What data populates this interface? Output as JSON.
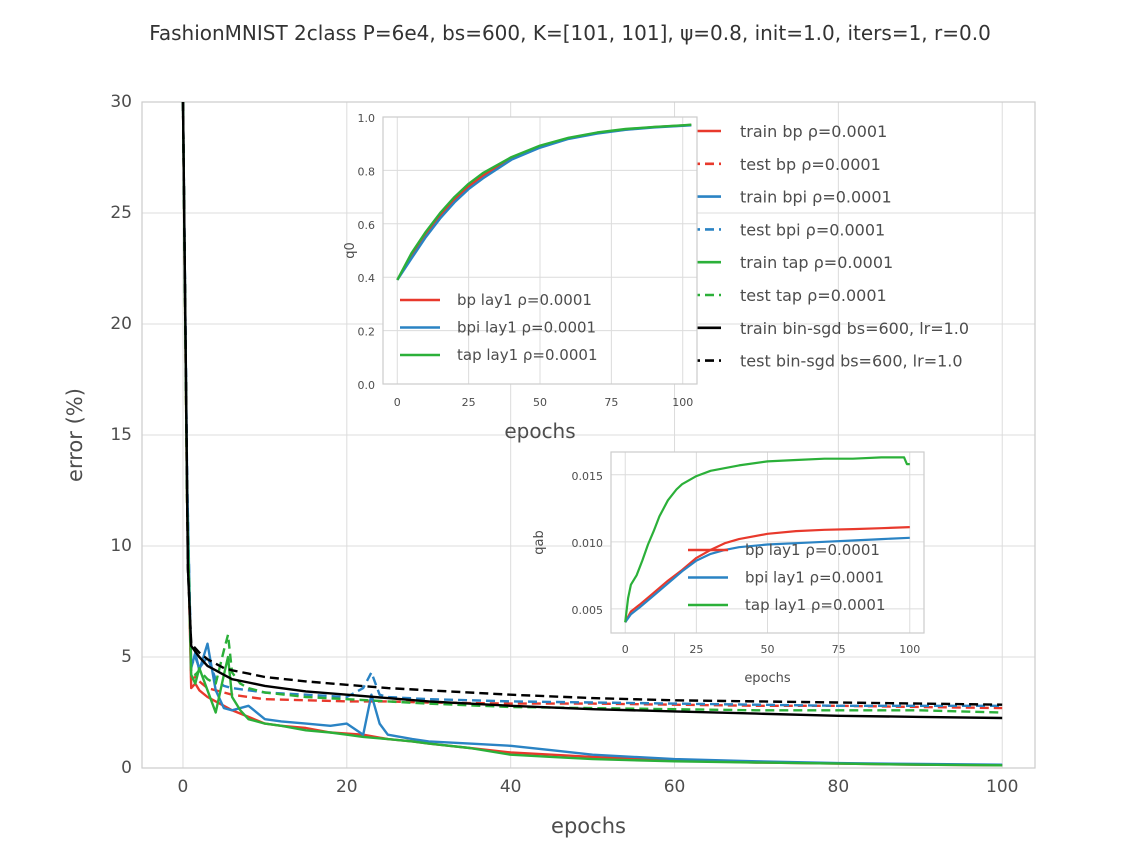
{
  "figure_title": "FashionMNIST 2class P=6e4, bs=600, K=[101, 101], ψ=0.8, init=1.0, iters=1, r=0.0",
  "colors": {
    "bp": "#e8392c",
    "bpi": "#2a83c4",
    "tap": "#2bb039",
    "bin": "#000000",
    "grid": "#dcdcdc",
    "frame": "#cccccc"
  },
  "chart_data": [
    {
      "id": "main",
      "type": "line",
      "title": "",
      "xlabel": "epochs",
      "ylabel": "error (%)",
      "xlim": [
        -5,
        104
      ],
      "ylim": [
        0,
        30
      ],
      "xticks": [
        0,
        20,
        40,
        60,
        80,
        100
      ],
      "yticks": [
        0,
        5,
        10,
        15,
        20,
        25,
        30
      ],
      "grid": true,
      "legend": {
        "placement": "top-right"
      },
      "series": [
        {
          "name": "train bp ρ=0.0001",
          "color_key": "bp",
          "dash": false,
          "x": [
            0,
            0.5,
            1,
            1.5,
            2,
            3,
            4,
            5,
            6,
            8,
            10,
            12,
            15,
            18,
            20,
            22,
            25,
            28,
            30,
            35,
            40,
            45,
            50,
            60,
            70,
            80,
            90,
            100
          ],
          "y": [
            30,
            12,
            3.6,
            3.8,
            3.5,
            3.2,
            3.0,
            2.8,
            2.6,
            2.3,
            2.0,
            1.9,
            1.8,
            1.6,
            1.55,
            1.5,
            1.3,
            1.2,
            1.1,
            0.9,
            0.7,
            0.6,
            0.5,
            0.35,
            0.25,
            0.2,
            0.15,
            0.12
          ]
        },
        {
          "name": "test bp ρ=0.0001",
          "color_key": "bp",
          "dash": true,
          "x": [
            0,
            0.5,
            1,
            1.5,
            2,
            3,
            4,
            5,
            6,
            8,
            10,
            15,
            20,
            25,
            30,
            40,
            50,
            60,
            70,
            80,
            90,
            100
          ],
          "y": [
            30,
            12,
            4.0,
            4.1,
            3.9,
            3.6,
            3.5,
            3.4,
            3.3,
            3.2,
            3.1,
            3.05,
            3.0,
            3.0,
            2.95,
            2.9,
            2.9,
            2.85,
            2.8,
            2.8,
            2.75,
            2.7
          ]
        },
        {
          "name": "train bpi ρ=0.0001",
          "color_key": "bpi",
          "dash": false,
          "x": [
            0,
            0.5,
            1,
            1.5,
            2,
            3,
            4,
            5,
            6,
            8,
            10,
            12,
            15,
            18,
            20,
            22,
            23,
            24,
            25,
            28,
            30,
            35,
            40,
            45,
            50,
            60,
            70,
            80,
            90,
            100
          ],
          "y": [
            30,
            13,
            4.5,
            5.2,
            4.4,
            5.6,
            3.5,
            2.7,
            2.6,
            2.8,
            2.2,
            2.1,
            2.0,
            1.9,
            2.0,
            1.5,
            3.3,
            2.0,
            1.5,
            1.3,
            1.2,
            1.1,
            1.0,
            0.8,
            0.6,
            0.4,
            0.3,
            0.22,
            0.18,
            0.15
          ]
        },
        {
          "name": "test bpi ρ=0.0001",
          "color_key": "bpi",
          "dash": true,
          "x": [
            0,
            0.5,
            1,
            1.5,
            2,
            3,
            4,
            5,
            6,
            8,
            10,
            15,
            20,
            22,
            23,
            24,
            25,
            30,
            40,
            50,
            60,
            70,
            80,
            90,
            100
          ],
          "y": [
            30,
            13,
            4.6,
            5.0,
            4.5,
            5.0,
            4.0,
            3.7,
            3.6,
            3.5,
            3.4,
            3.3,
            3.2,
            3.6,
            4.3,
            3.3,
            3.2,
            3.1,
            3.0,
            2.95,
            2.9,
            2.85,
            2.8,
            2.8,
            2.8
          ]
        },
        {
          "name": "train tap ρ=0.0001",
          "color_key": "tap",
          "dash": false,
          "x": [
            0,
            0.5,
            1,
            1.5,
            2,
            3,
            4,
            5,
            5.5,
            6,
            7,
            8,
            10,
            12,
            15,
            18,
            20,
            22,
            25,
            28,
            30,
            35,
            40,
            45,
            50,
            60,
            70,
            80,
            90,
            100
          ],
          "y": [
            30,
            12,
            4.2,
            3.8,
            4.5,
            3.5,
            2.5,
            4.2,
            5.0,
            3.2,
            2.6,
            2.2,
            2.0,
            1.9,
            1.7,
            1.6,
            1.5,
            1.4,
            1.3,
            1.2,
            1.1,
            0.9,
            0.6,
            0.5,
            0.4,
            0.3,
            0.25,
            0.2,
            0.15,
            0.12
          ]
        },
        {
          "name": "test tap ρ=0.0001",
          "color_key": "tap",
          "dash": true,
          "x": [
            0,
            0.5,
            1,
            1.5,
            2,
            3,
            4,
            5,
            5.5,
            6,
            7,
            8,
            10,
            15,
            20,
            25,
            30,
            40,
            50,
            60,
            70,
            80,
            90,
            100
          ],
          "y": [
            30,
            12,
            4.3,
            4.2,
            4.4,
            4.0,
            3.8,
            5.3,
            6.0,
            4.3,
            3.8,
            3.6,
            3.4,
            3.2,
            3.1,
            3.0,
            2.9,
            2.75,
            2.7,
            2.65,
            2.6,
            2.6,
            2.6,
            2.5
          ]
        },
        {
          "name": "train bin-sgd bs=600, lr=1.0",
          "color_key": "bin",
          "dash": false,
          "x": [
            0,
            0.3,
            0.6,
            1,
            2,
            3,
            4,
            5,
            6,
            8,
            10,
            15,
            20,
            25,
            30,
            40,
            50,
            60,
            70,
            80,
            90,
            100
          ],
          "y": [
            30,
            20,
            9,
            5.5,
            5.0,
            4.6,
            4.4,
            4.2,
            4.0,
            3.85,
            3.7,
            3.45,
            3.3,
            3.15,
            3.0,
            2.8,
            2.65,
            2.55,
            2.45,
            2.35,
            2.3,
            2.25
          ]
        },
        {
          "name": "test bin-sgd bs=600, lr=1.0",
          "color_key": "bin",
          "dash": true,
          "x": [
            0,
            0.3,
            0.6,
            1,
            2,
            3,
            4,
            5,
            6,
            8,
            10,
            15,
            20,
            25,
            30,
            40,
            50,
            60,
            70,
            80,
            90,
            100
          ],
          "y": [
            30,
            20,
            9,
            5.6,
            5.2,
            4.9,
            4.7,
            4.5,
            4.4,
            4.25,
            4.1,
            3.9,
            3.75,
            3.6,
            3.5,
            3.3,
            3.15,
            3.05,
            3.0,
            2.95,
            2.9,
            2.85
          ]
        }
      ]
    },
    {
      "id": "inset_q0",
      "type": "line",
      "title": "",
      "xlabel": "epochs",
      "ylabel": "q0",
      "xlim": [
        -5,
        105
      ],
      "ylim": [
        0.0,
        1.0
      ],
      "xticks": [
        0,
        25,
        50,
        75,
        100
      ],
      "yticks": [
        0.0,
        0.2,
        0.4,
        0.6,
        0.8,
        1.0
      ],
      "grid": true,
      "legend": {
        "placement": "bottom-left"
      },
      "series": [
        {
          "name": "bp lay1 ρ=0.0001",
          "color_key": "bp",
          "x": [
            0,
            5,
            10,
            15,
            20,
            25,
            30,
            40,
            50,
            60,
            70,
            80,
            90,
            100,
            103
          ],
          "y": [
            0.39,
            0.48,
            0.56,
            0.63,
            0.69,
            0.74,
            0.78,
            0.845,
            0.89,
            0.92,
            0.94,
            0.953,
            0.962,
            0.968,
            0.97
          ]
        },
        {
          "name": "bpi lay1 ρ=0.0001",
          "color_key": "bpi",
          "x": [
            0,
            5,
            10,
            15,
            20,
            25,
            30,
            40,
            50,
            60,
            70,
            80,
            90,
            100,
            103
          ],
          "y": [
            0.39,
            0.47,
            0.55,
            0.62,
            0.68,
            0.73,
            0.77,
            0.84,
            0.885,
            0.918,
            0.938,
            0.952,
            0.961,
            0.967,
            0.969
          ]
        },
        {
          "name": "tap lay1 ρ=0.0001",
          "color_key": "tap",
          "x": [
            0,
            5,
            10,
            15,
            20,
            25,
            30,
            40,
            50,
            60,
            70,
            80,
            90,
            100,
            103
          ],
          "y": [
            0.39,
            0.49,
            0.57,
            0.64,
            0.7,
            0.75,
            0.79,
            0.85,
            0.893,
            0.922,
            0.942,
            0.955,
            0.963,
            0.969,
            0.971
          ]
        }
      ]
    },
    {
      "id": "inset_qab",
      "type": "line",
      "title": "",
      "xlabel": "epochs",
      "ylabel": "qab",
      "xlim": [
        -5,
        105
      ],
      "ylim": [
        0.0032,
        0.0167
      ],
      "xticks": [
        0,
        25,
        50,
        75,
        100
      ],
      "yticks": [
        0.005,
        0.01,
        0.015
      ],
      "grid": true,
      "legend": {
        "placement": "center-right"
      },
      "series": [
        {
          "name": "bp lay1 ρ=0.0001",
          "color_key": "bp",
          "x": [
            0,
            2,
            5,
            10,
            15,
            20,
            25,
            30,
            35,
            40,
            50,
            60,
            70,
            80,
            90,
            100
          ],
          "y": [
            0.004,
            0.0048,
            0.0053,
            0.0062,
            0.0071,
            0.0079,
            0.0088,
            0.0094,
            0.0099,
            0.0102,
            0.0106,
            0.0108,
            0.0109,
            0.01095,
            0.01102,
            0.0111
          ]
        },
        {
          "name": "bpi lay1 ρ=0.0001",
          "color_key": "bpi",
          "x": [
            0,
            2,
            5,
            10,
            15,
            20,
            25,
            30,
            35,
            40,
            50,
            60,
            70,
            80,
            90,
            100
          ],
          "y": [
            0.004,
            0.0046,
            0.0051,
            0.006,
            0.0069,
            0.0078,
            0.0086,
            0.0091,
            0.0094,
            0.0096,
            0.0098,
            0.0099,
            0.01,
            0.0101,
            0.0102,
            0.0103
          ]
        },
        {
          "name": "tap lay1 ρ=0.0001",
          "color_key": "tap",
          "x": [
            0,
            1,
            2,
            4,
            6,
            8,
            10,
            12,
            15,
            18,
            20,
            25,
            30,
            40,
            50,
            60,
            70,
            80,
            90,
            98,
            99,
            100
          ],
          "y": [
            0.004,
            0.0058,
            0.0068,
            0.0075,
            0.0086,
            0.0098,
            0.0108,
            0.0119,
            0.0131,
            0.0139,
            0.0143,
            0.0149,
            0.0153,
            0.0157,
            0.016,
            0.0161,
            0.0162,
            0.0162,
            0.0163,
            0.0163,
            0.0158,
            0.0158
          ]
        }
      ]
    }
  ]
}
